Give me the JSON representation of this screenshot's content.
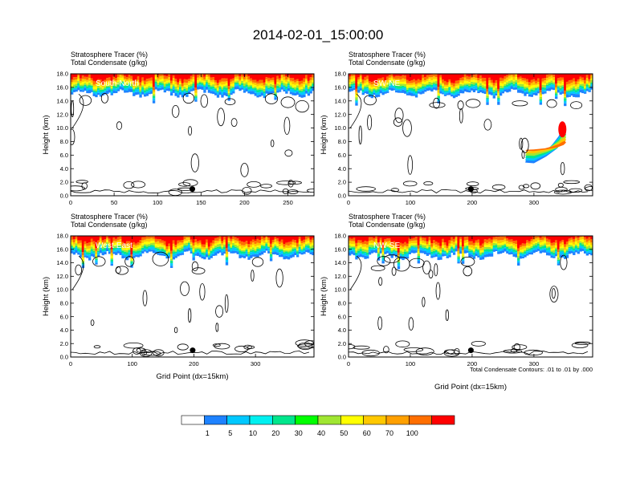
{
  "title": "2014-02-01_15:00:00",
  "colors": [
    "#ffffff",
    "#1e82ff",
    "#00c8ff",
    "#00f0f0",
    "#00e68c",
    "#00ff00",
    "#a0e632",
    "#ffff00",
    "#ffc800",
    "#ffa000",
    "#ff6e00",
    "#ff0000"
  ],
  "colorbar": {
    "labels": [
      "1",
      "5",
      "10",
      "20",
      "30",
      "40",
      "50",
      "60",
      "70",
      "100"
    ],
    "colors": [
      "#ffffff",
      "#1e82ff",
      "#00c8ff",
      "#00f0f0",
      "#00e68c",
      "#00ff00",
      "#a0e632",
      "#ffff00",
      "#ffc800",
      "#ffa000",
      "#ff6e00",
      "#ff0000"
    ]
  },
  "contour_note": "Total Condensate Contours: .01 to .01 by .000",
  "chart_data": [
    {
      "type": "heatmap",
      "label": "South-North",
      "title_lines": [
        "Stratosphere Tracer   (%)",
        "Total Condensate   (g/kg)"
      ],
      "ylabel": "Height (km)",
      "xlabel": "",
      "xlim": [
        0,
        280
      ],
      "ylim": [
        0,
        18
      ],
      "xticks": [
        0,
        50,
        100,
        150,
        200,
        250
      ],
      "yticks": [
        "0.0",
        "2.0",
        "4.0",
        "6.0",
        "8.0",
        "10.0",
        "12.0",
        "14.0",
        "16.0",
        "18.0"
      ],
      "marker": {
        "x": 140,
        "y": 1.0
      }
    },
    {
      "type": "heatmap",
      "label": "SW-NE",
      "title_lines": [
        "Stratosphere Tracer   (%)",
        "Total Condensate   (g/kg)"
      ],
      "ylabel": "Height (km)",
      "xlabel": "",
      "xlim": [
        0,
        395
      ],
      "ylim": [
        0,
        18
      ],
      "xticks": [
        0,
        100,
        200,
        300
      ],
      "yticks": [
        "0.0",
        "2.0",
        "4.0",
        "6.0",
        "8.0",
        "10.0",
        "12.0",
        "14.0",
        "16.0",
        "18.0"
      ],
      "marker": {
        "x": 198,
        "y": 1.0
      }
    },
    {
      "type": "heatmap",
      "label": "West-East",
      "title_lines": [
        "Stratosphere Tracer   (%)",
        "Total Condensate   (g/kg)"
      ],
      "ylabel": "Height (km)",
      "xlabel": "Grid Point (dx=15km)",
      "xlim": [
        0,
        395
      ],
      "ylim": [
        0,
        18
      ],
      "xticks": [
        0,
        100,
        200,
        300
      ],
      "yticks": [
        "0.0",
        "2.0",
        "4.0",
        "6.0",
        "8.0",
        "10.0",
        "12.0",
        "14.0",
        "16.0",
        "18.0"
      ],
      "marker": {
        "x": 198,
        "y": 1.0
      }
    },
    {
      "type": "heatmap",
      "label": "NW-SE",
      "title_lines": [
        "Stratosphere Tracer   (%)",
        "Total Condensate   (g/kg)"
      ],
      "ylabel": "Height (km)",
      "xlabel": "Grid Point (dx=15km)",
      "xlim": [
        0,
        395
      ],
      "ylim": [
        0,
        18
      ],
      "xticks": [
        0,
        100,
        200,
        300
      ],
      "yticks": [
        "0.0",
        "2.0",
        "4.0",
        "6.0",
        "8.0",
        "10.0",
        "12.0",
        "14.0",
        "16.0",
        "18.0"
      ],
      "marker": {
        "x": 198,
        "y": 1.0
      }
    }
  ]
}
